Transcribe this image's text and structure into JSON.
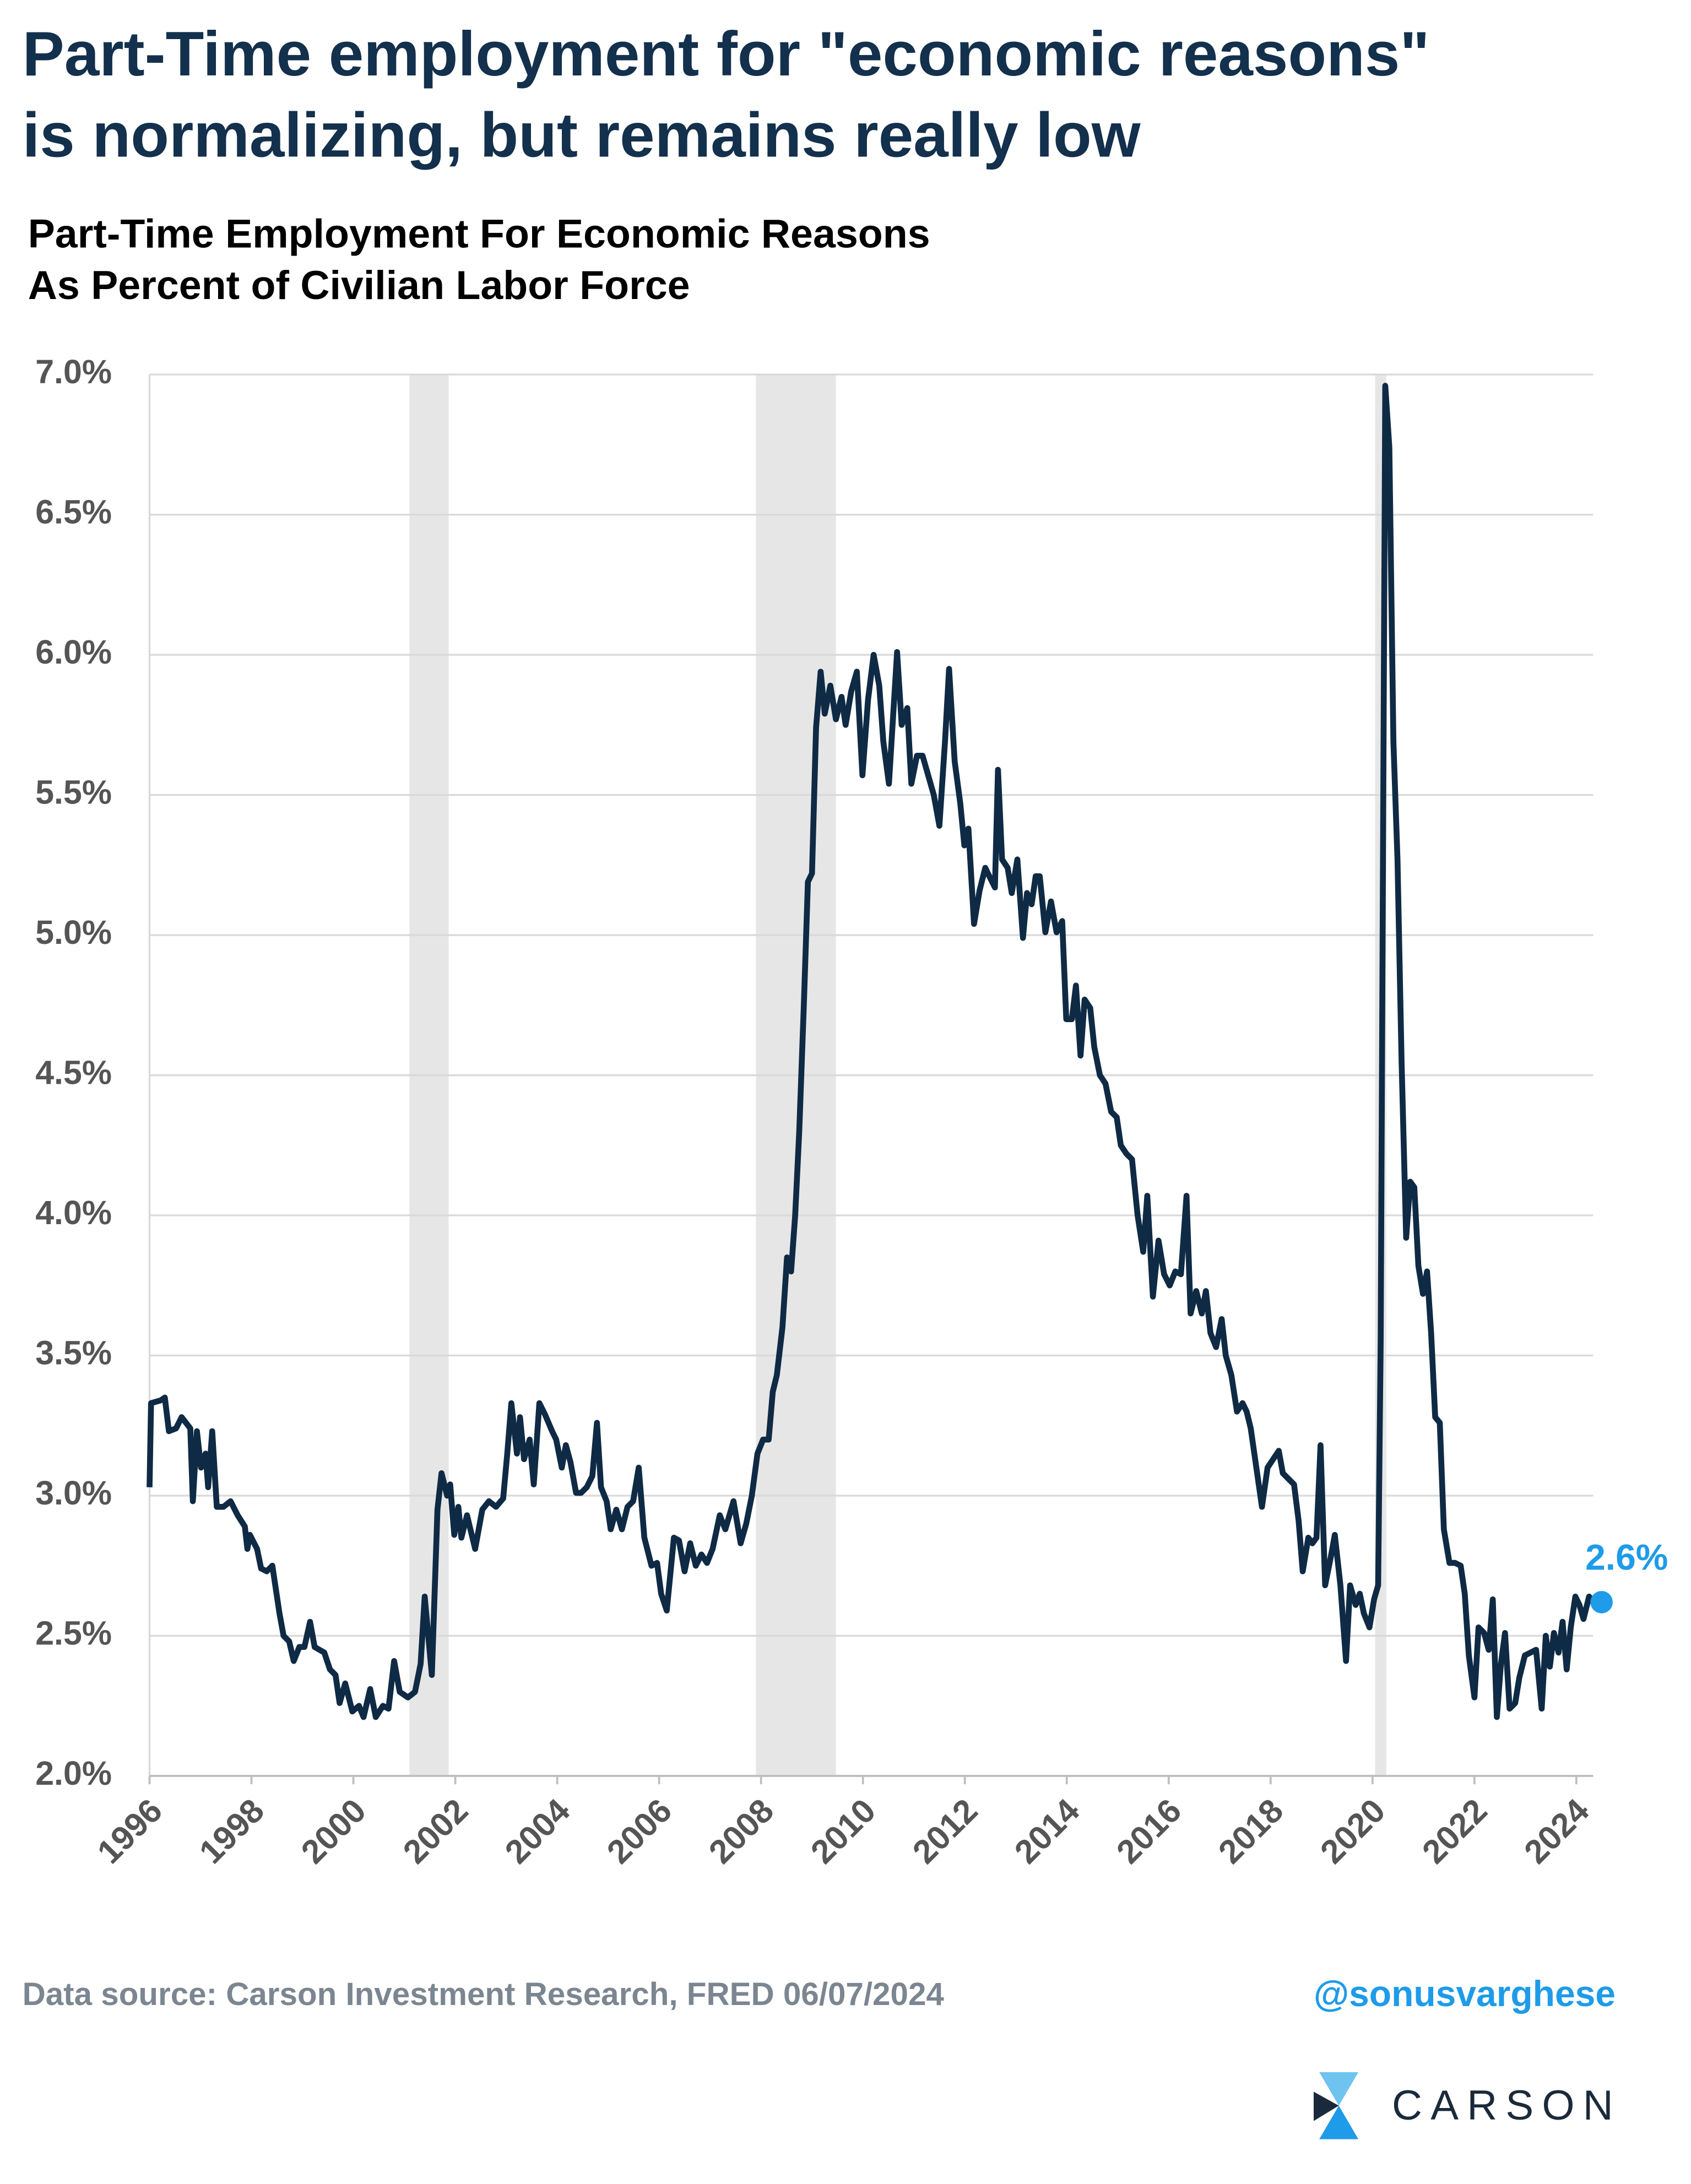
{
  "chart_data": {
    "type": "line",
    "title_lines": [
      "Part-Time employment for \"economic reasons\"",
      "is normalizing, but remains really low"
    ],
    "subtitle_lines": [
      "Part-Time Employment For Economic Reasons",
      "As Percent of Civilian Labor Force"
    ],
    "source": "Data source: Carson Investment Research, FRED   06/07/2024",
    "handle": "@sonusvarghese",
    "brand": "CARSON",
    "end_label": "2.6%",
    "color": "#0f2a44",
    "end_color": "#1e9be9",
    "recession_color": "#e6e6e6",
    "grid": true,
    "xlim": [
      1996,
      2024.33
    ],
    "xticks": [
      1996,
      1998,
      2000,
      2002,
      2004,
      2006,
      2008,
      2010,
      2012,
      2014,
      2016,
      2018,
      2020,
      2022,
      2024
    ],
    "ylim": [
      2,
      7
    ],
    "yticks": [
      {
        "value": 2,
        "label": "2.0%"
      },
      {
        "value": 2.5,
        "label": "2.5%"
      },
      {
        "value": 3,
        "label": "3.0%"
      },
      {
        "value": 3.5,
        "label": "3.5%"
      },
      {
        "value": 4,
        "label": "4.0%"
      },
      {
        "value": 4.5,
        "label": "4.5%"
      },
      {
        "value": 5,
        "label": "5.0%"
      },
      {
        "value": 5.5,
        "label": "5.5%"
      },
      {
        "value": 6,
        "label": "6.0%"
      },
      {
        "value": 6.5,
        "label": "6.5%"
      },
      {
        "value": 7,
        "label": "7.0%"
      }
    ],
    "recessions": [
      [
        2001.1,
        2001.87
      ],
      [
        2007.9,
        2009.47
      ],
      [
        2020.05,
        2020.27
      ]
    ],
    "x": [
      1996.0,
      1996.03,
      1996.22,
      1996.3,
      1996.38,
      1996.52,
      1996.63,
      1996.8,
      1996.85,
      1996.93,
      1997.01,
      1997.1,
      1997.15,
      1997.23,
      1997.32,
      1997.45,
      1997.59,
      1997.73,
      1997.87,
      1997.92,
      1997.97,
      1998.11,
      1998.19,
      1998.3,
      1998.41,
      1998.55,
      1998.63,
      1998.74,
      1998.83,
      1998.94,
      1999.04,
      1999.15,
      1999.24,
      1999.43,
      1999.54,
      1999.65,
      1999.73,
      1999.84,
      1999.98,
      2000.11,
      2000.2,
      2000.33,
      2000.44,
      2000.58,
      2000.69,
      2000.8,
      2000.91,
      2001.07,
      2001.21,
      2001.32,
      2001.4,
      2001.54,
      2001.65,
      2001.73,
      2001.84,
      2001.9,
      2001.98,
      2002.06,
      2002.12,
      2002.23,
      2002.39,
      2002.53,
      2002.66,
      2002.8,
      2002.94,
      2003.02,
      2003.1,
      2003.21,
      2003.27,
      2003.35,
      2003.46,
      2003.54,
      2003.65,
      2003.76,
      2003.9,
      2003.98,
      2004.09,
      2004.17,
      2004.26,
      2004.37,
      2004.47,
      2004.58,
      2004.69,
      2004.78,
      2004.86,
      2004.97,
      2005.05,
      2005.16,
      2005.27,
      2005.38,
      2005.49,
      2005.6,
      2005.71,
      2005.85,
      2005.96,
      2006.04,
      2006.15,
      2006.29,
      2006.39,
      2006.5,
      2006.61,
      2006.72,
      2006.83,
      2006.94,
      2007.05,
      2007.19,
      2007.3,
      2007.46,
      2007.6,
      2007.71,
      2007.82,
      2007.93,
      2008.04,
      2008.15,
      2008.23,
      2008.31,
      2008.42,
      2008.51,
      2008.59,
      2008.67,
      2008.75,
      2008.84,
      2008.92,
      2009.0,
      2009.08,
      2009.17,
      2009.25,
      2009.36,
      2009.47,
      2009.58,
      2009.66,
      2009.77,
      2009.88,
      2009.99,
      2010.1,
      2010.21,
      2010.32,
      2010.4,
      2010.51,
      2010.67,
      2010.76,
      2010.87,
      2010.95,
      2011.06,
      2011.17,
      2011.28,
      2011.39,
      2011.5,
      2011.61,
      2011.69,
      2011.8,
      2011.91,
      2011.99,
      2012.07,
      2012.18,
      2012.29,
      2012.4,
      2012.48,
      2012.59,
      2012.65,
      2012.73,
      2012.84,
      2012.92,
      2013.03,
      2013.14,
      2013.22,
      2013.31,
      2013.39,
      2013.47,
      2013.58,
      2013.69,
      2013.8,
      2013.91,
      2013.99,
      2014.1,
      2014.18,
      2014.27,
      2014.35,
      2014.46,
      2014.54,
      2014.65,
      2014.76,
      2014.87,
      2014.98,
      2015.06,
      2015.17,
      2015.28,
      2015.39,
      2015.5,
      2015.58,
      2015.69,
      2015.8,
      2015.91,
      2016.02,
      2016.13,
      2016.24,
      2016.35,
      2016.43,
      2016.54,
      2016.65,
      2016.73,
      2016.82,
      2016.93,
      2017.04,
      2017.12,
      2017.23,
      2017.34,
      2017.45,
      2017.53,
      2017.61,
      2017.72,
      2017.83,
      2017.94,
      2018.05,
      2018.16,
      2018.24,
      2018.35,
      2018.46,
      2018.55,
      2018.63,
      2018.74,
      2018.82,
      2018.9,
      2018.98,
      2019.07,
      2019.18,
      2019.26,
      2019.37,
      2019.48,
      2019.56,
      2019.67,
      2019.75,
      2019.83,
      2019.94,
      2020.03,
      2020.11,
      2020.16,
      2020.25,
      2020.33,
      2020.41,
      2020.49,
      2020.57,
      2020.66,
      2020.74,
      2020.82,
      2020.9,
      2020.99,
      2021.07,
      2021.15,
      2021.23,
      2021.32,
      2021.4,
      2021.51,
      2021.62,
      2021.73,
      2021.81,
      2021.89,
      2022.0,
      2022.08,
      2022.19,
      2022.28,
      2022.36,
      2022.44,
      2022.52,
      2022.6,
      2022.69,
      2022.8,
      2022.88,
      2022.99,
      2023.1,
      2023.21,
      2023.32,
      2023.4,
      2023.48,
      2023.56,
      2023.65,
      2023.73,
      2023.81,
      2023.89,
      2023.98,
      2024.06,
      2024.14,
      2024.25,
      2024.33
    ],
    "values": [
      3.03,
      3.33,
      3.34,
      3.35,
      3.23,
      3.24,
      3.28,
      3.24,
      2.98,
      3.23,
      3.1,
      3.15,
      3.03,
      3.23,
      2.96,
      2.96,
      2.98,
      2.93,
      2.89,
      2.81,
      2.86,
      2.81,
      2.74,
      2.73,
      2.75,
      2.58,
      2.5,
      2.48,
      2.41,
      2.46,
      2.46,
      2.55,
      2.46,
      2.44,
      2.38,
      2.36,
      2.26,
      2.33,
      2.23,
      2.25,
      2.21,
      2.31,
      2.21,
      2.25,
      2.24,
      2.41,
      2.3,
      2.28,
      2.3,
      2.4,
      2.64,
      2.36,
      2.95,
      3.08,
      3.0,
      3.04,
      2.86,
      2.96,
      2.85,
      2.93,
      2.81,
      2.95,
      2.98,
      2.96,
      2.99,
      3.15,
      3.33,
      3.15,
      3.28,
      3.13,
      3.2,
      3.04,
      3.33,
      3.29,
      3.23,
      3.2,
      3.1,
      3.18,
      3.12,
      3.01,
      3.01,
      3.03,
      3.07,
      3.26,
      3.03,
      2.98,
      2.88,
      2.95,
      2.88,
      2.96,
      2.98,
      3.1,
      2.85,
      2.75,
      2.76,
      2.65,
      2.59,
      2.85,
      2.84,
      2.73,
      2.83,
      2.75,
      2.79,
      2.76,
      2.81,
      2.93,
      2.88,
      2.98,
      2.83,
      2.9,
      3.0,
      3.15,
      3.2,
      3.2,
      3.37,
      3.43,
      3.6,
      3.85,
      3.8,
      4.0,
      4.3,
      4.75,
      5.19,
      5.22,
      5.74,
      5.94,
      5.79,
      5.89,
      5.77,
      5.85,
      5.75,
      5.87,
      5.94,
      5.57,
      5.84,
      6.0,
      5.89,
      5.69,
      5.54,
      6.01,
      5.75,
      5.81,
      5.54,
      5.64,
      5.64,
      5.57,
      5.5,
      5.39,
      5.69,
      5.95,
      5.62,
      5.47,
      5.32,
      5.38,
      5.04,
      5.16,
      5.24,
      5.21,
      5.17,
      5.59,
      5.27,
      5.24,
      5.15,
      5.27,
      4.99,
      5.15,
      5.11,
      5.21,
      5.21,
      5.01,
      5.12,
      5.01,
      5.05,
      4.7,
      4.7,
      4.82,
      4.57,
      4.77,
      4.74,
      4.6,
      4.5,
      4.47,
      4.37,
      4.35,
      4.25,
      4.22,
      4.2,
      4.0,
      3.87,
      4.07,
      3.71,
      3.91,
      3.79,
      3.75,
      3.8,
      3.79,
      4.07,
      3.65,
      3.73,
      3.65,
      3.73,
      3.58,
      3.53,
      3.63,
      3.5,
      3.43,
      3.3,
      3.33,
      3.3,
      3.24,
      3.1,
      2.96,
      3.1,
      3.13,
      3.16,
      3.08,
      3.06,
      3.04,
      2.91,
      2.73,
      2.85,
      2.83,
      2.85,
      3.18,
      2.68,
      2.78,
      2.86,
      2.68,
      2.41,
      2.68,
      2.61,
      2.65,
      2.58,
      2.53,
      2.63,
      2.68,
      3.55,
      6.96,
      6.74,
      5.69,
      5.27,
      4.55,
      3.92,
      4.12,
      4.1,
      3.82,
      3.72,
      3.8,
      3.58,
      3.28,
      3.26,
      2.88,
      2.76,
      2.76,
      2.75,
      2.65,
      2.43,
      2.28,
      2.53,
      2.51,
      2.45,
      2.63,
      2.21,
      2.4,
      2.51,
      2.24,
      2.26,
      2.35,
      2.43,
      2.44,
      2.45,
      2.24,
      2.5,
      2.39,
      2.51,
      2.44,
      2.55,
      2.38,
      2.53,
      2.64,
      2.61,
      2.56,
      2.64,
      2.62
    ]
  }
}
